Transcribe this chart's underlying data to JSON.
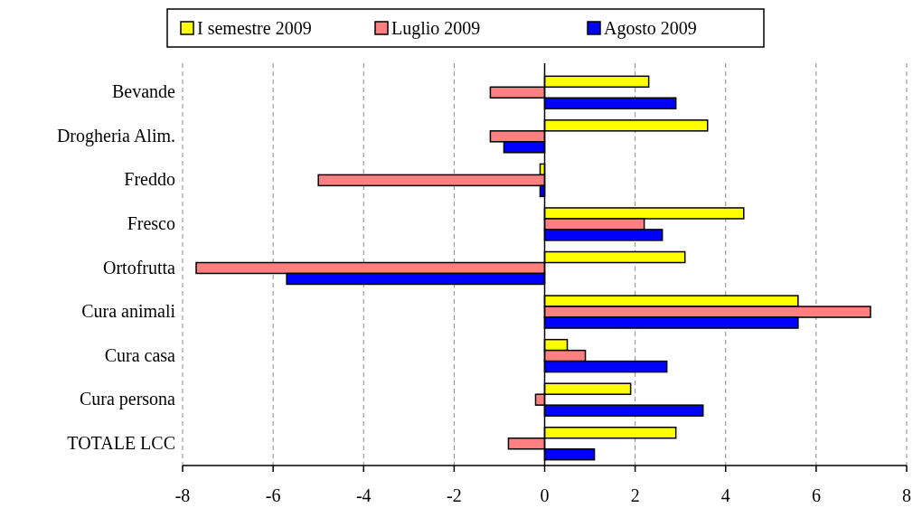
{
  "chart_data": {
    "type": "bar",
    "orientation": "horizontal",
    "categories": [
      "Bevande",
      "Drogheria Alim.",
      "Freddo",
      "Fresco",
      "Ortofrutta",
      "Cura animali",
      "Cura casa",
      "Cura persona",
      "TOTALE LCC"
    ],
    "series": [
      {
        "name": "I semestre 2009",
        "color": "#ffff00",
        "values": [
          2.3,
          3.6,
          -0.1,
          4.4,
          3.1,
          5.6,
          0.5,
          1.9,
          2.9
        ]
      },
      {
        "name": "Luglio 2009",
        "color": "#ff8080",
        "values": [
          -1.2,
          -1.2,
          -5.0,
          2.2,
          -7.7,
          7.2,
          0.9,
          -0.2,
          -0.8
        ]
      },
      {
        "name": "Agosto 2009",
        "color": "#0000ff",
        "values": [
          2.9,
          -0.9,
          -0.1,
          2.6,
          -5.7,
          5.6,
          2.7,
          3.5,
          1.1
        ]
      }
    ],
    "xlim": [
      -8,
      8
    ],
    "xticks": [
      -8,
      -6,
      -4,
      -2,
      0,
      2,
      4,
      6,
      8
    ],
    "grid": "x",
    "legend": "top"
  }
}
